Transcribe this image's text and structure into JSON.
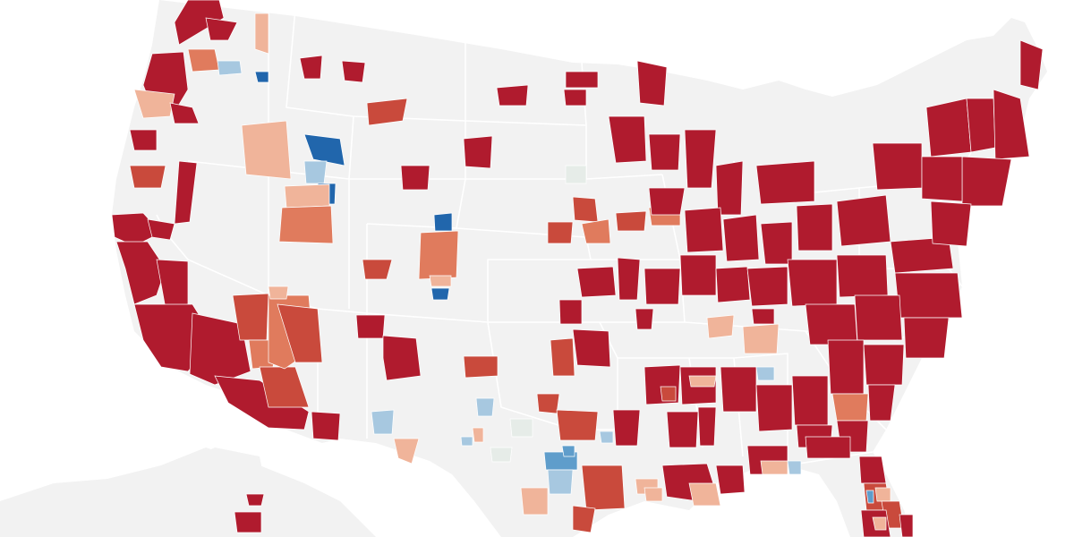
{
  "map": {
    "region": "contiguous-united-states",
    "base_color": "#f2f2f2",
    "border_color": "#ffffff",
    "scale_colors": {
      "strong_red": "#b01b2e",
      "red": "#c94a3c",
      "medium_red": "#e07b5d",
      "light_red": "#f0b49a",
      "neutral": "#e6ece8",
      "light_blue": "#a7c8e0",
      "medium_blue": "#5f9dcb",
      "strong_blue": "#2166ac"
    },
    "legend": null
  }
}
